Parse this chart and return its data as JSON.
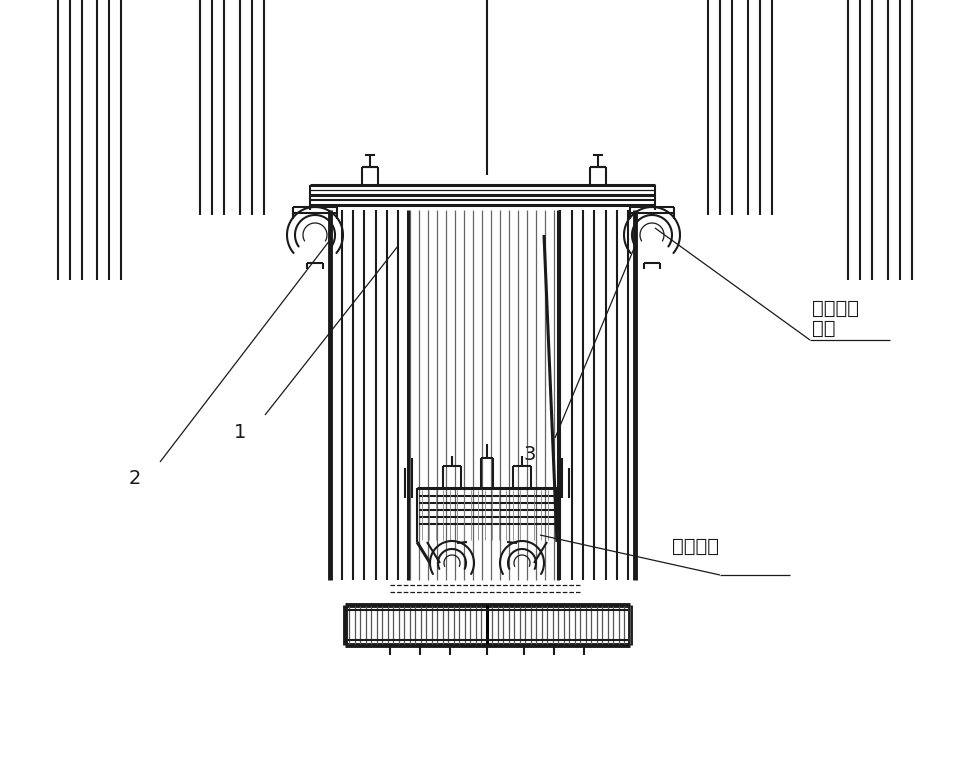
{
  "bg_color": "#ffffff",
  "lc": "#1a1a1a",
  "lw_hair": 0.6,
  "lw_thin": 0.9,
  "lw_mid": 1.5,
  "lw_thick": 2.2,
  "lw_bold": 3.5,
  "label_1": "1",
  "label_2": "2",
  "label_3": "3",
  "label_h1": "高度调节",
  "label_h2": "位置",
  "label_detach": "折卸位置",
  "font_size": 14
}
